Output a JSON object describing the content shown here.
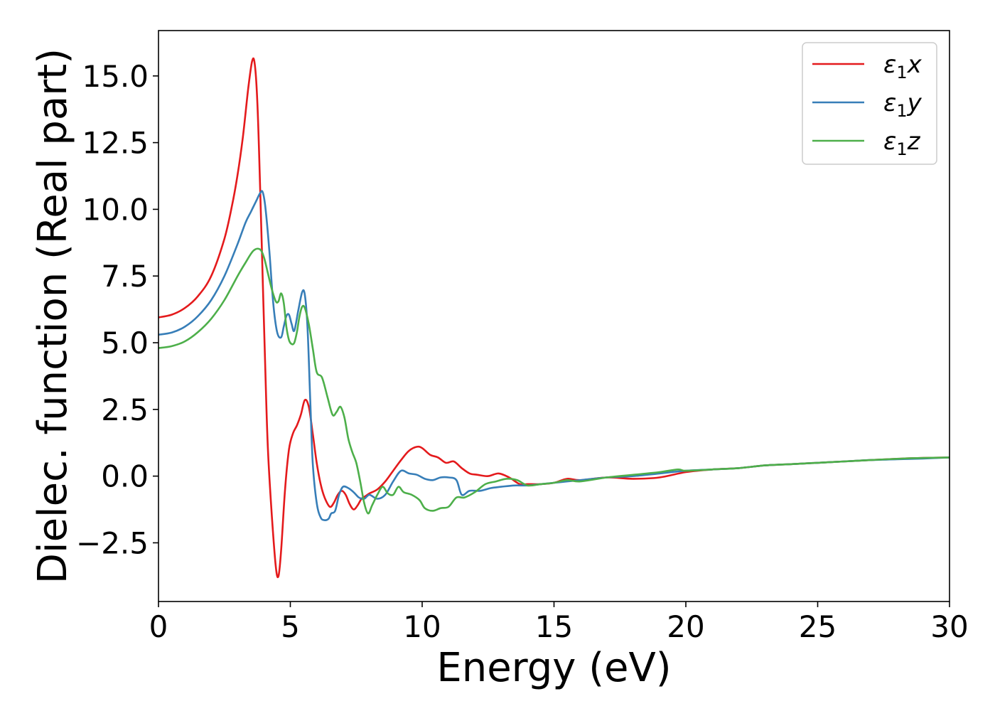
{
  "chart_data": {
    "type": "line",
    "title": "",
    "xlabel": "Energy (eV)",
    "ylabel": "Dielec. function (Real part)",
    "xlim": [
      0,
      30
    ],
    "ylim": [
      -4.7,
      16.7
    ],
    "xticks": [
      0,
      5,
      10,
      15,
      20,
      25,
      30
    ],
    "xtick_labels": [
      "0",
      "5",
      "10",
      "15",
      "20",
      "25",
      "30"
    ],
    "yticks": [
      -2.5,
      0.0,
      2.5,
      5.0,
      7.5,
      10.0,
      12.5,
      15.0
    ],
    "ytick_labels": [
      "−2.5",
      "0.0",
      "2.5",
      "5.0",
      "7.5",
      "10.0",
      "12.5",
      "15.0"
    ],
    "grid": false,
    "legend_position": "top-right",
    "series": [
      {
        "name": "ε₁x",
        "legend_base": "ε",
        "legend_sub": "1",
        "legend_tail": "x",
        "color": "#e41a1c",
        "x": [
          0,
          0.5,
          1.0,
          1.5,
          2.0,
          2.5,
          2.8,
          3.0,
          3.2,
          3.4,
          3.55,
          3.65,
          3.75,
          3.85,
          3.95,
          4.05,
          4.15,
          4.3,
          4.45,
          4.55,
          4.65,
          4.8,
          4.95,
          5.1,
          5.25,
          5.4,
          5.55,
          5.7,
          5.85,
          6.0,
          6.15,
          6.3,
          6.5,
          6.65,
          6.8,
          6.95,
          7.1,
          7.25,
          7.4,
          7.55,
          7.7,
          7.85,
          8.0,
          8.3,
          8.6,
          8.9,
          9.2,
          9.5,
          9.8,
          10.0,
          10.3,
          10.6,
          10.9,
          11.2,
          11.5,
          11.8,
          12.1,
          12.5,
          12.9,
          13.3,
          13.7,
          14.0,
          14.5,
          15.0,
          15.5,
          16.0,
          17.0,
          18.0,
          19.0,
          20.0,
          21.0,
          22.0,
          23.0,
          24.0,
          25.0,
          26.0,
          27.0,
          28.0,
          29.0,
          30.0
        ],
        "y": [
          5.95,
          6.05,
          6.3,
          6.75,
          7.5,
          8.9,
          10.2,
          11.3,
          12.7,
          14.5,
          15.55,
          15.45,
          14.0,
          11.0,
          7.5,
          4.0,
          1.0,
          -1.5,
          -3.4,
          -3.75,
          -2.8,
          -0.5,
          1.0,
          1.6,
          1.9,
          2.3,
          2.85,
          2.6,
          1.6,
          0.5,
          -0.3,
          -0.8,
          -1.15,
          -1.0,
          -0.7,
          -0.55,
          -0.7,
          -1.05,
          -1.25,
          -1.1,
          -0.85,
          -0.75,
          -0.65,
          -0.5,
          -0.2,
          0.2,
          0.6,
          0.95,
          1.1,
          1.05,
          0.8,
          0.7,
          0.5,
          0.55,
          0.3,
          0.1,
          0.05,
          0.0,
          0.1,
          -0.05,
          -0.3,
          -0.3,
          -0.3,
          -0.25,
          -0.1,
          -0.15,
          -0.05,
          -0.1,
          -0.05,
          0.15,
          0.25,
          0.3,
          0.4,
          0.45,
          0.5,
          0.55,
          0.6,
          0.65,
          0.68,
          0.7
        ]
      },
      {
        "name": "ε₁y",
        "legend_base": "ε",
        "legend_sub": "1",
        "legend_tail": "y",
        "color": "#377eb8",
        "x": [
          0,
          0.5,
          1.0,
          1.5,
          2.0,
          2.5,
          3.0,
          3.3,
          3.5,
          3.7,
          3.85,
          3.95,
          4.05,
          4.2,
          4.35,
          4.5,
          4.65,
          4.75,
          4.85,
          4.95,
          5.05,
          5.15,
          5.3,
          5.45,
          5.55,
          5.65,
          5.75,
          5.85,
          6.0,
          6.15,
          6.3,
          6.45,
          6.55,
          6.7,
          6.85,
          7.0,
          7.2,
          7.4,
          7.6,
          7.8,
          8.0,
          8.3,
          8.6,
          8.9,
          9.2,
          9.5,
          9.8,
          10.1,
          10.4,
          10.7,
          11.0,
          11.3,
          11.5,
          11.8,
          12.2,
          12.6,
          13.0,
          13.5,
          14.0,
          14.5,
          15.0,
          15.5,
          16.0,
          17.0,
          18.0,
          19.0,
          20.0,
          21.0,
          22.0,
          23.0,
          24.0,
          25.0,
          26.0,
          27.0,
          28.0,
          29.0,
          30.0
        ],
        "y": [
          5.3,
          5.38,
          5.6,
          6.0,
          6.6,
          7.5,
          8.7,
          9.5,
          9.9,
          10.3,
          10.6,
          10.65,
          10.1,
          8.5,
          6.5,
          5.4,
          5.2,
          5.6,
          6.0,
          6.05,
          5.7,
          5.45,
          6.2,
          6.9,
          6.8,
          5.6,
          3.0,
          0.5,
          -1.0,
          -1.55,
          -1.65,
          -1.6,
          -1.4,
          -1.3,
          -0.7,
          -0.4,
          -0.45,
          -0.6,
          -0.8,
          -0.85,
          -0.7,
          -0.85,
          -0.7,
          -0.2,
          0.2,
          0.1,
          0.05,
          -0.1,
          -0.15,
          -0.05,
          -0.05,
          -0.15,
          -0.7,
          -0.55,
          -0.55,
          -0.45,
          -0.4,
          -0.35,
          -0.35,
          -0.3,
          -0.25,
          -0.2,
          -0.15,
          -0.05,
          0.0,
          0.1,
          0.2,
          0.25,
          0.3,
          0.4,
          0.45,
          0.5,
          0.55,
          0.6,
          0.63,
          0.66,
          0.7
        ]
      },
      {
        "name": "ε₁z",
        "legend_base": "ε",
        "legend_sub": "1",
        "legend_tail": "z",
        "color": "#4daf4a",
        "x": [
          0,
          0.5,
          1.0,
          1.5,
          2.0,
          2.5,
          3.0,
          3.3,
          3.6,
          3.85,
          4.0,
          4.15,
          4.3,
          4.45,
          4.55,
          4.65,
          4.75,
          4.85,
          4.95,
          5.05,
          5.15,
          5.25,
          5.35,
          5.45,
          5.55,
          5.7,
          5.85,
          6.0,
          6.2,
          6.4,
          6.6,
          6.75,
          6.9,
          7.05,
          7.2,
          7.35,
          7.5,
          7.65,
          7.8,
          7.95,
          8.1,
          8.3,
          8.5,
          8.7,
          8.9,
          9.1,
          9.3,
          9.6,
          9.9,
          10.1,
          10.4,
          10.7,
          11.0,
          11.3,
          11.6,
          12.0,
          12.4,
          12.8,
          13.2,
          13.6,
          14.0,
          14.5,
          15.0,
          15.5,
          16.0,
          17.0,
          18.0,
          19.0,
          19.7,
          20.0,
          21.0,
          22.0,
          23.0,
          24.0,
          25.0,
          26.0,
          27.0,
          28.0,
          29.0,
          30.0
        ],
        "y": [
          4.8,
          4.87,
          5.05,
          5.4,
          5.9,
          6.6,
          7.5,
          8.0,
          8.45,
          8.5,
          8.2,
          7.6,
          7.0,
          6.55,
          6.55,
          6.85,
          6.5,
          5.6,
          5.1,
          4.95,
          5.0,
          5.4,
          6.0,
          6.35,
          6.3,
          5.7,
          4.8,
          3.9,
          3.7,
          3.0,
          2.3,
          2.4,
          2.6,
          2.2,
          1.4,
          0.9,
          0.5,
          -0.2,
          -1.0,
          -1.4,
          -1.1,
          -0.7,
          -0.4,
          -0.65,
          -0.7,
          -0.4,
          -0.6,
          -0.7,
          -0.9,
          -1.2,
          -1.3,
          -1.2,
          -1.15,
          -0.8,
          -0.8,
          -0.6,
          -0.3,
          -0.2,
          -0.1,
          -0.15,
          -0.35,
          -0.3,
          -0.25,
          -0.15,
          -0.2,
          -0.05,
          0.05,
          0.15,
          0.25,
          0.2,
          0.25,
          0.3,
          0.4,
          0.45,
          0.5,
          0.55,
          0.6,
          0.65,
          0.68,
          0.7
        ]
      }
    ]
  }
}
